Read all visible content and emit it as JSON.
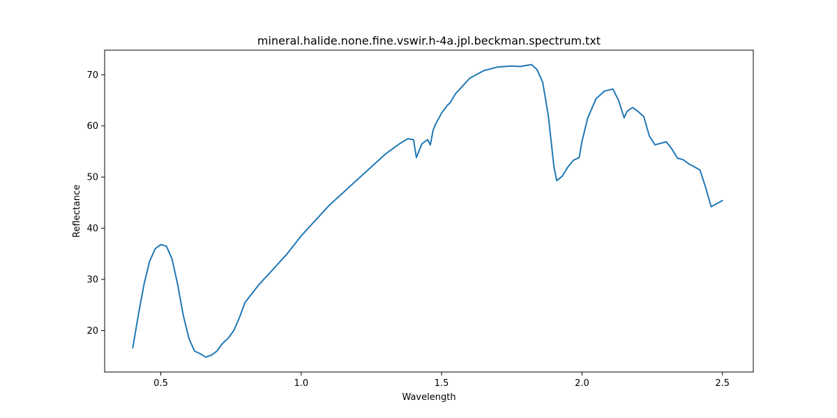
{
  "chart_data": {
    "type": "line",
    "title": "mineral.halide.none.fine.vswir.h-4a.jpl.beckman.spectrum.txt",
    "xlabel": "Wavelength",
    "ylabel": "Reflectance",
    "xlim": [
      0.3,
      2.61
    ],
    "ylim": [
      11.9,
      74.8
    ],
    "xticks": [
      0.5,
      1.0,
      1.5,
      2.0,
      2.5
    ],
    "xtick_labels": [
      "0.5",
      "1.0",
      "1.5",
      "2.0",
      "2.5"
    ],
    "yticks": [
      20,
      30,
      40,
      50,
      60,
      70
    ],
    "ytick_labels": [
      "20",
      "30",
      "40",
      "50",
      "60",
      "70"
    ],
    "grid": false,
    "series": [
      {
        "color": "#1f77b4",
        "x": [
          0.4,
          0.42,
          0.44,
          0.46,
          0.48,
          0.5,
          0.52,
          0.54,
          0.56,
          0.58,
          0.6,
          0.62,
          0.64,
          0.66,
          0.68,
          0.7,
          0.72,
          0.74,
          0.76,
          0.78,
          0.8,
          0.85,
          0.9,
          0.95,
          1.0,
          1.05,
          1.1,
          1.15,
          1.2,
          1.25,
          1.3,
          1.35,
          1.38,
          1.4,
          1.41,
          1.43,
          1.45,
          1.46,
          1.47,
          1.48,
          1.5,
          1.52,
          1.53,
          1.55,
          1.57,
          1.6,
          1.65,
          1.7,
          1.75,
          1.78,
          1.82,
          1.84,
          1.86,
          1.88,
          1.9,
          1.91,
          1.93,
          1.95,
          1.97,
          1.99,
          2.0,
          2.02,
          2.05,
          2.08,
          2.11,
          2.13,
          2.15,
          2.16,
          2.18,
          2.2,
          2.22,
          2.24,
          2.26,
          2.28,
          2.3,
          2.32,
          2.34,
          2.36,
          2.38,
          2.4,
          2.42,
          2.44,
          2.46,
          2.48,
          2.5
        ],
        "y": [
          16.6,
          23.0,
          29.0,
          33.5,
          36.0,
          36.8,
          36.5,
          34.0,
          29.0,
          23.0,
          18.5,
          16.0,
          15.5,
          14.8,
          15.2,
          16.0,
          17.5,
          18.5,
          20.0,
          22.5,
          25.5,
          29.0,
          32.0,
          35.0,
          38.5,
          41.5,
          44.5,
          47.0,
          49.5,
          52.0,
          54.5,
          56.5,
          57.5,
          57.3,
          53.8,
          56.5,
          57.3,
          56.3,
          59.2,
          60.5,
          62.5,
          64.0,
          64.5,
          66.3,
          67.5,
          69.3,
          70.8,
          71.5,
          71.7,
          71.6,
          72.0,
          71.0,
          68.5,
          62.0,
          52.0,
          49.3,
          50.2,
          52.0,
          53.3,
          53.8,
          57.0,
          61.5,
          65.3,
          66.8,
          67.2,
          65.0,
          61.6,
          62.8,
          63.6,
          62.8,
          61.8,
          58.0,
          56.3,
          56.6,
          56.9,
          55.5,
          53.7,
          53.4,
          52.6,
          52.0,
          51.4,
          48.0,
          44.2,
          44.8,
          45.4
        ]
      }
    ]
  }
}
